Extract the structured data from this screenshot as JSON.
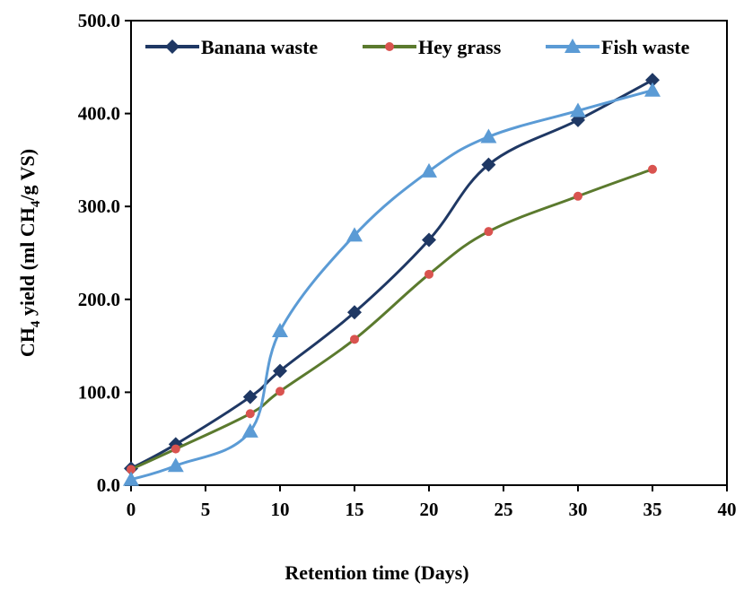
{
  "chart_data": {
    "type": "line",
    "title": "",
    "xlabel": "Retention time (Days)",
    "ylabel": {
      "prefix": "CH",
      "sub1": "4",
      "mid": " yield (ml CH",
      "sub2": "4",
      "suffix": "/g VS)"
    },
    "xlim": [
      0,
      40
    ],
    "ylim": [
      0,
      500
    ],
    "x_ticks": [
      "0",
      "5",
      "10",
      "15",
      "20",
      "25",
      "30",
      "35",
      "40"
    ],
    "x_tick_values": [
      0,
      5,
      10,
      15,
      20,
      25,
      30,
      35,
      40
    ],
    "y_ticks": [
      "0.0",
      "100.0",
      "200.0",
      "300.0",
      "400.0",
      "500.0"
    ],
    "y_tick_values": [
      0,
      100,
      200,
      300,
      400,
      500
    ],
    "grid": false,
    "legend_position": "top",
    "series": [
      {
        "name": "Banana waste",
        "color": "#1f3864",
        "marker": "diamond",
        "x": [
          0,
          3,
          8,
          10,
          15,
          20,
          24,
          30,
          35
        ],
        "y": [
          18,
          44,
          95,
          123,
          186,
          264,
          345,
          393,
          436
        ]
      },
      {
        "name": "Hey grass",
        "color": "#5b7a2e",
        "marker_color": "#d9534f",
        "marker": "circle",
        "x": [
          0,
          3,
          8,
          10,
          15,
          20,
          24,
          30,
          35
        ],
        "y": [
          17,
          39,
          77,
          101,
          157,
          227,
          273,
          311,
          340
        ]
      },
      {
        "name": "Fish waste",
        "color": "#5b9bd5",
        "marker": "triangle",
        "x": [
          0,
          3,
          8,
          10,
          15,
          20,
          24,
          30,
          35
        ],
        "y": [
          6,
          21,
          58,
          166,
          269,
          338,
          375,
          403,
          425
        ]
      }
    ]
  }
}
